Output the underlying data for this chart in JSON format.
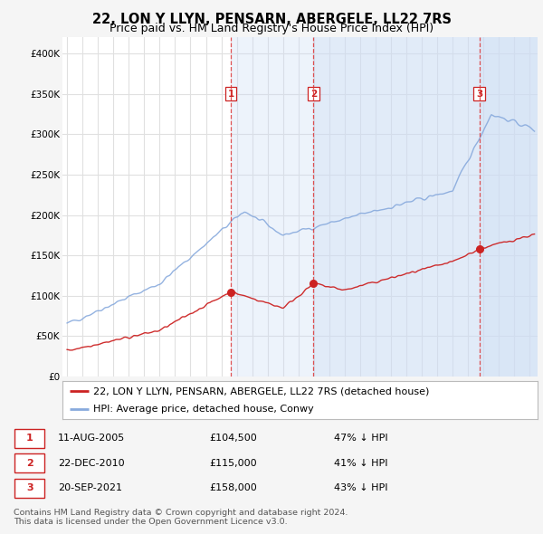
{
  "title": "22, LON Y LLYN, PENSARN, ABERGELE, LL22 7RS",
  "subtitle": "Price paid vs. HM Land Registry's House Price Index (HPI)",
  "ylim": [
    0,
    420000
  ],
  "yticks": [
    0,
    50000,
    100000,
    150000,
    200000,
    250000,
    300000,
    350000,
    400000
  ],
  "ytick_labels": [
    "£0",
    "£50K",
    "£100K",
    "£150K",
    "£200K",
    "£250K",
    "£300K",
    "£350K",
    "£400K"
  ],
  "background_color": "#f5f5f5",
  "plot_bg_color": "#ffffff",
  "grid_color": "#e0e0e0",
  "shade_color": "#ccddf5",
  "sale_color": "#cc2222",
  "hpi_color": "#88aadd",
  "sale_label": "22, LON Y LLYN, PENSARN, ABERGELE, LL22 7RS (detached house)",
  "hpi_label": "HPI: Average price, detached house, Conwy",
  "transactions": [
    {
      "num": 1,
      "date": "11-AUG-2005",
      "price": 104500,
      "x": 2005.61,
      "pct": "47% ↓ HPI"
    },
    {
      "num": 2,
      "date": "22-DEC-2010",
      "price": 115000,
      "x": 2010.97,
      "pct": "41% ↓ HPI"
    },
    {
      "num": 3,
      "date": "20-SEP-2021",
      "price": 158000,
      "x": 2021.72,
      "pct": "43% ↓ HPI"
    }
  ],
  "footer": "Contains HM Land Registry data © Crown copyright and database right 2024.\nThis data is licensed under the Open Government Licence v3.0.",
  "title_fontsize": 10.5,
  "subtitle_fontsize": 9,
  "tick_fontsize": 7.5,
  "legend_fontsize": 8,
  "footer_fontsize": 6.8,
  "xmin": 1994.7,
  "xmax": 2025.5
}
